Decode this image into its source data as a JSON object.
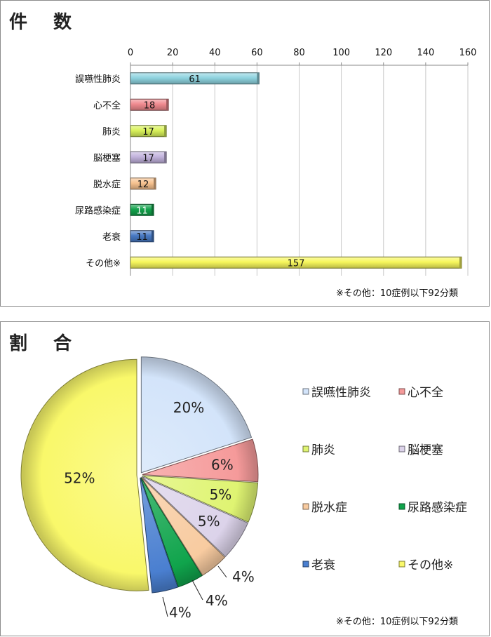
{
  "bar_section": {
    "title": "件 数",
    "note": "※その他：10症例以下92分類"
  },
  "pie_section": {
    "title": "割 合",
    "note": "※その他：10症例以下92分類"
  },
  "chart_data": [
    {
      "type": "bar",
      "orientation": "horizontal",
      "title": "件 数",
      "categories": [
        "誤嚥性肺炎",
        "心不全",
        "肺炎",
        "脳梗塞",
        "脱水症",
        "尿路感染症",
        "老衰",
        "その他※"
      ],
      "values": [
        61,
        18,
        17,
        17,
        12,
        11,
        11,
        157
      ],
      "xlim": [
        0,
        160
      ],
      "xticks": [
        0,
        20,
        40,
        60,
        80,
        100,
        120,
        140,
        160
      ],
      "grid": true,
      "colors": [
        "#8fd3df",
        "#f08a8f",
        "#d9f25a",
        "#c2b3dd",
        "#f7c28f",
        "#12a24b",
        "#4779c4",
        "#f7f75c"
      ],
      "note": "※その他：10症例以下92分類"
    },
    {
      "type": "pie",
      "title": "割 合",
      "labels": [
        "誤嚥性肺炎",
        "心不全",
        "肺炎",
        "脳梗塞",
        "脱水症",
        "尿路感染症",
        "老衰",
        "その他※"
      ],
      "values": [
        61,
        18,
        17,
        17,
        12,
        11,
        11,
        157
      ],
      "percent_labels": [
        "20%",
        "6%",
        "5%",
        "5%",
        "4%",
        "4%",
        "4%",
        "52%"
      ],
      "colors": [
        "#d3e4fa",
        "#f59a9a",
        "#dff472",
        "#dcd3ea",
        "#f8cba0",
        "#10a44c",
        "#4a7fd0",
        "#f9f86a"
      ],
      "legend": "right",
      "note": "※その他：10症例以下92分類"
    }
  ]
}
